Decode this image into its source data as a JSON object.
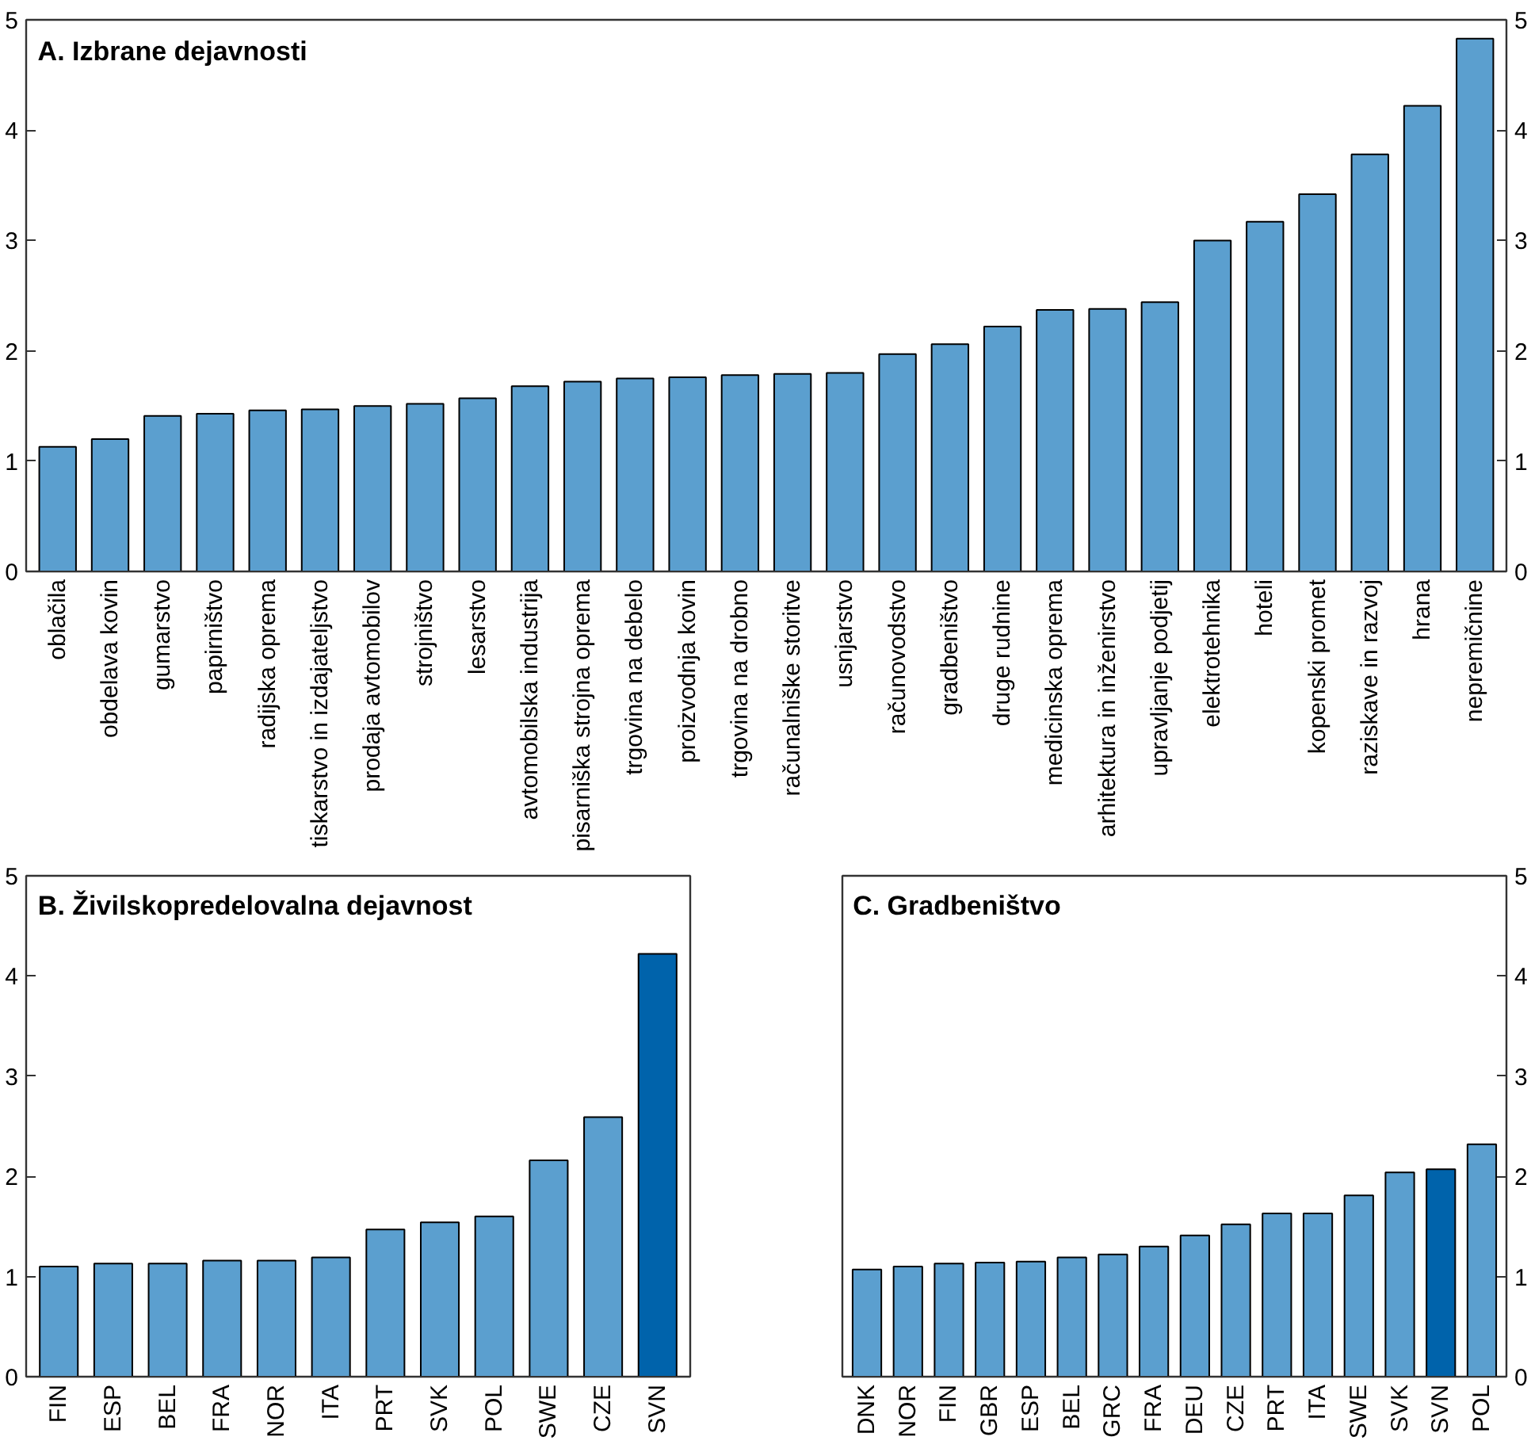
{
  "chart_data": [
    {
      "type": "bar",
      "title": "A. Izbrane dejavnosti",
      "categories": [
        "oblačila",
        "obdelava kovin",
        "gumarstvo",
        "papirništvo",
        "radijska oprema",
        "tiskarstvo in izdajateljstvo",
        "prodaja avtomobilov",
        "strojništvo",
        "lesarstvo",
        "avtomobilska industrija",
        "pisarniška strojna oprema",
        "trgovina na debelo",
        "proizvodnja kovin",
        "trgovina na drobno",
        "računalniške storitve",
        "usnjarstvo",
        "računovodstvo",
        "gradbeništvo",
        "druge rudnine",
        "medicinska oprema",
        "arhitektura in inženirstvo",
        "upravljanje podjetij",
        "elektrotehnika",
        "hoteli",
        "kopenski promet",
        "raziskave in razvoj",
        "hrana",
        "nepremičnine"
      ],
      "values": [
        1.13,
        1.2,
        1.41,
        1.43,
        1.46,
        1.47,
        1.5,
        1.52,
        1.57,
        1.68,
        1.72,
        1.75,
        1.76,
        1.78,
        1.79,
        1.8,
        1.97,
        2.06,
        2.22,
        2.37,
        2.38,
        2.44,
        3.0,
        3.17,
        3.42,
        3.78,
        4.22,
        4.83
      ],
      "color": "#5b9fcf",
      "ylim": [
        0,
        5
      ],
      "yticks": [
        0,
        1,
        2,
        3,
        4,
        5
      ],
      "y2lim": [
        0,
        5
      ],
      "y2ticks": [
        0,
        1,
        2,
        3,
        4,
        5
      ],
      "grid": false
    },
    {
      "type": "bar",
      "title": "B. Živilskopredelovalna dejavnost",
      "categories": [
        "FIN",
        "ESP",
        "BEL",
        "FRA",
        "NOR",
        "ITA",
        "PRT",
        "SVK",
        "POL",
        "SWE",
        "CZE",
        "SVN"
      ],
      "values": [
        1.1,
        1.13,
        1.13,
        1.16,
        1.16,
        1.19,
        1.47,
        1.54,
        1.6,
        2.16,
        2.59,
        4.22
      ],
      "colors": [
        "#5b9fcf",
        "#5b9fcf",
        "#5b9fcf",
        "#5b9fcf",
        "#5b9fcf",
        "#5b9fcf",
        "#5b9fcf",
        "#5b9fcf",
        "#5b9fcf",
        "#5b9fcf",
        "#5b9fcf",
        "#0063ab"
      ],
      "ylim": [
        0,
        5
      ],
      "yticks": [
        0,
        1,
        2,
        3,
        4,
        5
      ],
      "grid": false
    },
    {
      "type": "bar",
      "title": "C. Gradbeništvo",
      "categories": [
        "DNK",
        "NOR",
        "FIN",
        "GBR",
        "ESP",
        "BEL",
        "GRC",
        "FRA",
        "DEU",
        "CZE",
        "PRT",
        "ITA",
        "SWE",
        "SVK",
        "SVN",
        "POL"
      ],
      "series": [
        {
          "axis": "y2",
          "values": [
            1.07,
            1.1,
            1.13,
            1.14,
            1.15,
            1.19,
            1.22,
            1.3,
            1.41,
            1.52,
            1.63,
            1.63,
            1.81,
            2.04,
            2.07,
            2.32
          ]
        }
      ],
      "colors": [
        "#5b9fcf",
        "#5b9fcf",
        "#5b9fcf",
        "#5b9fcf",
        "#5b9fcf",
        "#5b9fcf",
        "#5b9fcf",
        "#5b9fcf",
        "#5b9fcf",
        "#5b9fcf",
        "#5b9fcf",
        "#5b9fcf",
        "#5b9fcf",
        "#5b9fcf",
        "#0063ab",
        "#5b9fcf"
      ],
      "y2lim": [
        0,
        5
      ],
      "y2ticks": [
        0,
        1,
        2,
        3,
        4,
        5
      ],
      "grid": false
    }
  ]
}
